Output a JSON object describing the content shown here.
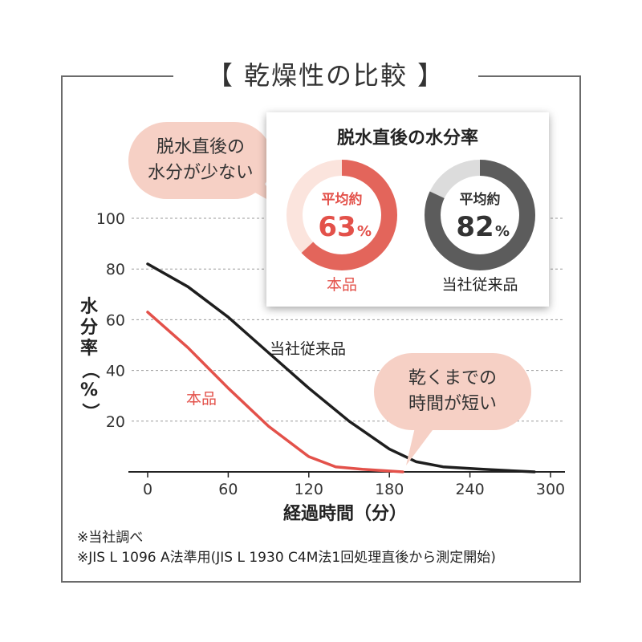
{
  "title": "【 乾燥性の比較 】",
  "bubbles": {
    "top_left": [
      "脱水直後の",
      "水分が少ない"
    ],
    "bottom_right": [
      "乾くまでの",
      "時間が短い"
    ]
  },
  "inset": {
    "title": "脱水直後の水分率",
    "donuts": [
      {
        "name": "本品",
        "prefix": "平均約",
        "value_text": "63",
        "percent_sign": "%",
        "value": 63,
        "color": "#e3655b",
        "track": "#fbe4dd"
      },
      {
        "name": "当社従来品",
        "prefix": "平均約",
        "value_text": "82",
        "percent_sign": "%",
        "value": 82,
        "color": "#5c5c5c",
        "track": "#dcdcdc"
      }
    ]
  },
  "chart_data": {
    "type": "line",
    "xlabel": "経過時間（分）",
    "ylabel": "水分率（%）",
    "xlim": [
      0,
      300
    ],
    "ylim": [
      0,
      100
    ],
    "x_ticks": [
      0,
      60,
      120,
      180,
      240,
      300
    ],
    "y_ticks": [
      20,
      40,
      60,
      80,
      100
    ],
    "grid": "horizontal dashed",
    "series": [
      {
        "name": "当社従来品",
        "color": "#1e1e1e",
        "points": [
          [
            0,
            82
          ],
          [
            30,
            73
          ],
          [
            60,
            61
          ],
          [
            90,
            47
          ],
          [
            120,
            33
          ],
          [
            150,
            20
          ],
          [
            180,
            9
          ],
          [
            200,
            4
          ],
          [
            220,
            2
          ],
          [
            250,
            1
          ],
          [
            288,
            0
          ]
        ]
      },
      {
        "name": "本品",
        "color": "#e3514a",
        "points": [
          [
            0,
            63
          ],
          [
            30,
            49
          ],
          [
            60,
            33
          ],
          [
            90,
            18
          ],
          [
            120,
            6
          ],
          [
            140,
            2
          ],
          [
            160,
            1
          ],
          [
            190,
            0
          ]
        ]
      }
    ]
  },
  "notes": [
    "※当社調べ",
    "※JIS L 1096 A法準用(JIS L 1930 C4M法1回処理直後から測定開始)"
  ]
}
